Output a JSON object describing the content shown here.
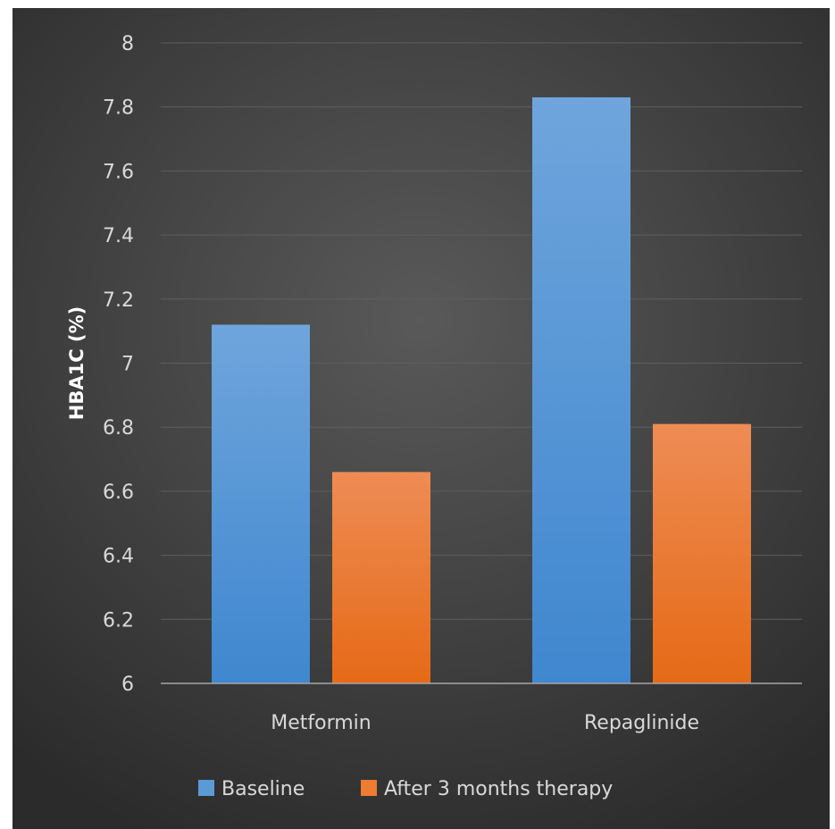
{
  "chart_data": {
    "type": "bar",
    "title": "",
    "xlabel": "",
    "ylabel": "HBA1C (%)",
    "categories": [
      "Metformin",
      "Repaglinide"
    ],
    "series": [
      {
        "name": "Baseline",
        "values": [
          7.12,
          7.83
        ],
        "color": "#5b9bd5"
      },
      {
        "name": "After 3 months therapy",
        "values": [
          6.66,
          6.81
        ],
        "color": "#ed7d31"
      }
    ],
    "ylim": [
      6,
      8
    ],
    "yticks": [
      "6",
      "6.2",
      "6.4",
      "6.6",
      "6.8",
      "7",
      "7.2",
      "7.4",
      "7.6",
      "7.8",
      "8"
    ],
    "grid": true,
    "legend_position": "bottom"
  }
}
